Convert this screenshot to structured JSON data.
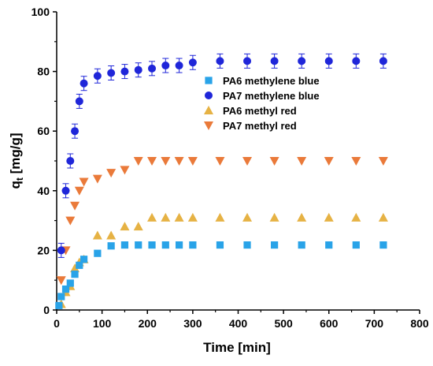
{
  "chart_data": {
    "type": "scatter",
    "xlabel": "Time [min]",
    "ylabel_main": "q",
    "ylabel_sub": "t",
    "ylabel_unit": " [mg/g]",
    "xlim": [
      0,
      800
    ],
    "ylim": [
      0,
      100
    ],
    "xticks": [
      0,
      100,
      200,
      300,
      400,
      500,
      600,
      700,
      800
    ],
    "yticks": [
      0,
      20,
      40,
      60,
      80,
      100
    ],
    "legend_position": "upper-right-inside",
    "series": [
      {
        "name": "PA6 methylene blue",
        "marker": "square",
        "color": "#29a3e8",
        "x": [
          5,
          10,
          20,
          30,
          40,
          50,
          60,
          90,
          120,
          150,
          180,
          210,
          240,
          270,
          300,
          360,
          420,
          480,
          540,
          600,
          660,
          720
        ],
        "y": [
          1.5,
          4.5,
          7,
          9,
          12,
          15,
          17,
          19,
          21.5,
          21.8,
          21.8,
          21.8,
          21.8,
          21.8,
          21.8,
          21.8,
          21.8,
          21.8,
          21.8,
          21.8,
          21.8,
          21.8
        ]
      },
      {
        "name": "PA7 methylene blue",
        "marker": "circle",
        "color": "#1f26d9",
        "errorbar": true,
        "x": [
          10,
          20,
          30,
          40,
          50,
          60,
          90,
          120,
          150,
          180,
          210,
          240,
          270,
          300,
          360,
          420,
          480,
          540,
          600,
          660,
          720
        ],
        "y": [
          20,
          40,
          50,
          60,
          70,
          76,
          78.5,
          79.5,
          80,
          80.5,
          81,
          82,
          82,
          83,
          83.5,
          83.5,
          83.5,
          83.5,
          83.5,
          83.5,
          83.5
        ]
      },
      {
        "name": "PA6 methyl red",
        "marker": "triangle-up",
        "color": "#e6b244",
        "x": [
          10,
          20,
          30,
          40,
          50,
          60,
          90,
          120,
          150,
          180,
          210,
          240,
          270,
          300,
          360,
          420,
          480,
          540,
          600,
          660,
          720
        ],
        "y": [
          2,
          6,
          8,
          14,
          16,
          17,
          25,
          25,
          28,
          28,
          31,
          31,
          31,
          31,
          31,
          31,
          31,
          31,
          31,
          31,
          31
        ]
      },
      {
        "name": "PA7 methyl red",
        "marker": "triangle-down",
        "color": "#ea7a3a",
        "x": [
          10,
          20,
          30,
          40,
          50,
          60,
          90,
          120,
          150,
          180,
          210,
          240,
          270,
          300,
          360,
          420,
          480,
          540,
          600,
          660,
          720
        ],
        "y": [
          10,
          20,
          30,
          35,
          40,
          43,
          44,
          46,
          47,
          50,
          50,
          50,
          50,
          50,
          50,
          50,
          50,
          50,
          50,
          50,
          50
        ]
      }
    ]
  }
}
